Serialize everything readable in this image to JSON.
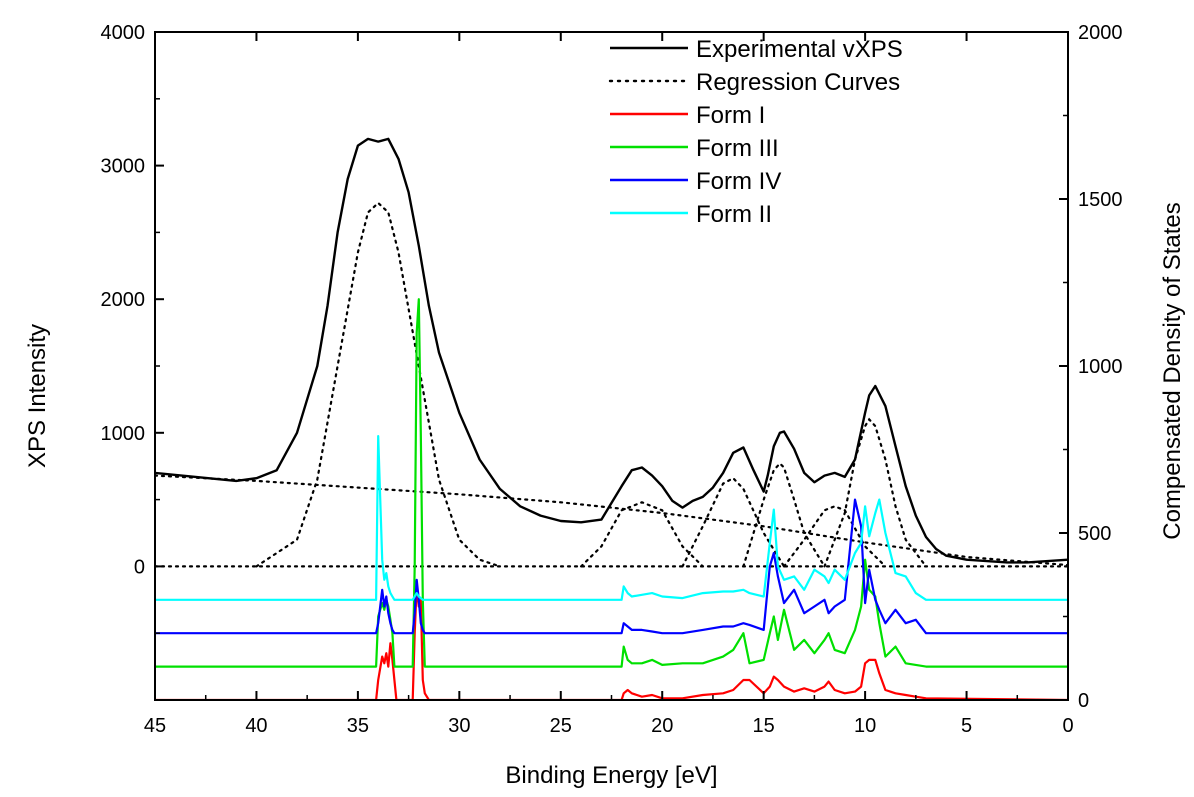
{
  "chart_data": {
    "type": "line",
    "xlabel": "Binding Energy [eV]",
    "ylabel_left": "XPS Intensity",
    "ylabel_right": "Compensated Density of States",
    "xlim": [
      45,
      0
    ],
    "ylim_left": [
      -1000,
      4000
    ],
    "ylim_right": [
      0,
      2000
    ],
    "x_ticks": [
      45,
      40,
      35,
      30,
      25,
      20,
      15,
      10,
      5,
      0
    ],
    "y_ticks_left": [
      0,
      1000,
      2000,
      3000,
      4000
    ],
    "y_ticks_right": [
      0,
      500,
      1000,
      1500,
      2000
    ],
    "grid": false,
    "legend_position": "top-right",
    "colors": {
      "experimental": "#000000",
      "regression": "#000000",
      "form_1": "#ff0000",
      "form_3": "#00e000",
      "form_4": "#0000ff",
      "form_2": "#00ffff"
    },
    "series": [
      {
        "name": "Experimental vXPS",
        "axis": "left",
        "style": "solid",
        "x": [
          45,
          43,
          41,
          40,
          39,
          38,
          37,
          36.5,
          36,
          35.5,
          35,
          34.5,
          34,
          33.5,
          33,
          32.5,
          32,
          31.5,
          31,
          30,
          29,
          28,
          27,
          26,
          25,
          24,
          23,
          22,
          21.5,
          21,
          20.5,
          20,
          19.5,
          19,
          18.5,
          18,
          17.5,
          17,
          16.5,
          16,
          15.5,
          15,
          14.8,
          14.5,
          14.2,
          14,
          13.5,
          13,
          12.5,
          12,
          11.5,
          11,
          10.5,
          10,
          9.8,
          9.5,
          9,
          8.5,
          8,
          7.5,
          7,
          6.5,
          6,
          5,
          4,
          3,
          2,
          1,
          0
        ],
        "y": [
          700,
          670,
          640,
          660,
          720,
          1000,
          1500,
          1950,
          2500,
          2900,
          3150,
          3200,
          3180,
          3200,
          3050,
          2800,
          2400,
          1950,
          1600,
          1150,
          800,
          580,
          450,
          380,
          340,
          330,
          350,
          600,
          720,
          740,
          680,
          600,
          490,
          440,
          490,
          520,
          590,
          700,
          850,
          890,
          720,
          560,
          680,
          900,
          1000,
          1010,
          880,
          700,
          630,
          680,
          700,
          670,
          800,
          1150,
          1280,
          1350,
          1200,
          900,
          600,
          380,
          220,
          130,
          80,
          50,
          40,
          30,
          30,
          40,
          50
        ]
      },
      {
        "name": "Regression Curves",
        "axis": "left",
        "style": "dotted",
        "components": [
          {
            "x": [
              45,
              40,
              35,
              30,
              25,
              20,
              15,
              10,
              5,
              0
            ],
            "y": [
              680,
              640,
              590,
              540,
              480,
              400,
              300,
              180,
              70,
              10
            ]
          },
          {
            "x": [
              40,
              38,
              37,
              36,
              35,
              34.5,
              34,
              33.5,
              33,
              32,
              31,
              30,
              29,
              28
            ],
            "y": [
              0,
              200,
              650,
              1500,
              2350,
              2650,
              2720,
              2650,
              2350,
              1500,
              650,
              200,
              50,
              0
            ]
          },
          {
            "x": [
              24,
              23,
              22,
              21,
              20,
              19,
              18
            ],
            "y": [
              0,
              150,
              420,
              480,
              420,
              150,
              0
            ]
          },
          {
            "x": [
              19,
              18,
              17,
              16.5,
              16,
              15,
              14
            ],
            "y": [
              0,
              300,
              620,
              660,
              580,
              250,
              0
            ]
          },
          {
            "x": [
              16,
              15,
              14.5,
              14.2,
              14,
              13.5,
              13,
              12
            ],
            "y": [
              0,
              500,
              720,
              770,
              740,
              500,
              250,
              0
            ]
          },
          {
            "x": [
              14,
              13,
              12,
              11.5,
              11,
              10,
              9
            ],
            "y": [
              0,
              200,
              420,
              450,
              420,
              150,
              0
            ]
          },
          {
            "x": [
              12,
              11,
              10.5,
              10,
              9.8,
              9.5,
              9,
              8.5,
              8,
              7
            ],
            "y": [
              0,
              400,
              800,
              1050,
              1100,
              1050,
              800,
              450,
              200,
              0
            ]
          }
        ]
      },
      {
        "name": "Form I",
        "axis": "right",
        "style": "solid",
        "baseline": 0,
        "x": [
          45,
          34.1,
          34,
          33.8,
          33.7,
          33.6,
          33.5,
          33.4,
          33.3,
          33.2,
          33.1,
          32.5,
          32.3,
          32.2,
          32.1,
          32,
          31.9,
          31.8,
          31.7,
          31.5,
          22,
          21.9,
          21.7,
          21.5,
          21,
          20.5,
          20,
          19,
          18,
          17,
          16.5,
          16,
          15.7,
          15,
          14.7,
          14.5,
          14.3,
          14,
          13.5,
          13,
          12.5,
          12,
          11.8,
          11.5,
          11,
          10.5,
          10.2,
          10,
          9.8,
          9.5,
          9.3,
          9,
          8.5,
          8,
          7.5,
          7,
          0
        ],
        "y": [
          0,
          0,
          60,
          130,
          110,
          140,
          100,
          170,
          120,
          60,
          0,
          0,
          0,
          200,
          340,
          280,
          300,
          60,
          20,
          0,
          0,
          20,
          30,
          20,
          10,
          15,
          5,
          5,
          15,
          20,
          30,
          60,
          60,
          20,
          40,
          70,
          60,
          40,
          25,
          35,
          25,
          40,
          55,
          30,
          20,
          25,
          40,
          110,
          120,
          120,
          80,
          30,
          20,
          15,
          10,
          5,
          0
        ]
      },
      {
        "name": "Form III",
        "axis": "right",
        "style": "solid",
        "baseline": 100,
        "x": [
          45,
          34.1,
          34,
          33.8,
          33.7,
          33.6,
          33.5,
          33.4,
          33.3,
          33.2,
          33.1,
          32.5,
          32.3,
          32.2,
          32.1,
          32,
          31.9,
          31.8,
          31.7,
          31.5,
          22,
          21.9,
          21.7,
          21.5,
          21,
          20.5,
          20,
          19,
          18,
          17,
          16.5,
          16,
          15.7,
          15,
          14.7,
          14.5,
          14.3,
          14,
          13.5,
          13,
          12.5,
          12,
          11.8,
          11.5,
          11,
          10.5,
          10.2,
          10,
          9.8,
          9.5,
          9.3,
          9,
          8.5,
          8,
          7.5,
          7,
          0
        ],
        "y": [
          100,
          100,
          250,
          290,
          270,
          300,
          280,
          240,
          200,
          100,
          100,
          100,
          100,
          400,
          1100,
          1200,
          800,
          300,
          100,
          100,
          100,
          160,
          120,
          110,
          110,
          120,
          105,
          110,
          110,
          130,
          150,
          200,
          110,
          120,
          200,
          250,
          180,
          270,
          150,
          180,
          140,
          180,
          200,
          150,
          140,
          210,
          280,
          420,
          330,
          310,
          230,
          130,
          160,
          110,
          105,
          100,
          100
        ]
      },
      {
        "name": "Form IV",
        "axis": "right",
        "style": "solid",
        "baseline": 200,
        "x": [
          45,
          34.1,
          34,
          33.8,
          33.7,
          33.6,
          33.5,
          33.4,
          33.3,
          33.2,
          33.1,
          32.5,
          32.3,
          32.2,
          32.1,
          32,
          31.9,
          31.8,
          31.7,
          31.5,
          22,
          21.9,
          21.7,
          21.5,
          21,
          20.5,
          20,
          19,
          18,
          17,
          16.5,
          16,
          15.7,
          15,
          14.7,
          14.5,
          14.3,
          14,
          13.5,
          13,
          12.5,
          12,
          11.8,
          11.5,
          11,
          10.5,
          10.2,
          10,
          9.8,
          9.5,
          9.3,
          9,
          8.5,
          8,
          7.5,
          7,
          0
        ],
        "y": [
          200,
          200,
          230,
          330,
          280,
          310,
          260,
          230,
          210,
          200,
          200,
          200,
          200,
          260,
          360,
          300,
          230,
          210,
          200,
          200,
          200,
          230,
          220,
          210,
          210,
          205,
          200,
          200,
          210,
          220,
          220,
          230,
          225,
          210,
          400,
          440,
          370,
          290,
          330,
          260,
          280,
          300,
          260,
          280,
          300,
          600,
          520,
          290,
          390,
          300,
          270,
          230,
          270,
          230,
          240,
          200,
          200
        ]
      },
      {
        "name": "Form II",
        "axis": "right",
        "style": "solid",
        "baseline": 300,
        "x": [
          45,
          34.1,
          34,
          33.8,
          33.7,
          33.6,
          33.5,
          33.4,
          33.3,
          33.2,
          33.1,
          32.5,
          32.3,
          32.2,
          32.1,
          32,
          31.9,
          31.8,
          31.7,
          31.5,
          22,
          21.9,
          21.7,
          21.5,
          21,
          20.5,
          20,
          19,
          18,
          17,
          16.5,
          16,
          15.7,
          15,
          14.7,
          14.5,
          14.3,
          14,
          13.5,
          13,
          12.5,
          12,
          11.8,
          11.5,
          11,
          10.5,
          10.2,
          10,
          9.8,
          9.5,
          9.3,
          9,
          8.5,
          8,
          7.5,
          7,
          0
        ],
        "y": [
          300,
          300,
          790,
          420,
          360,
          380,
          340,
          320,
          310,
          300,
          300,
          300,
          300,
          310,
          320,
          310,
          305,
          300,
          300,
          300,
          300,
          340,
          320,
          310,
          315,
          320,
          310,
          305,
          320,
          325,
          325,
          330,
          320,
          310,
          470,
          570,
          400,
          360,
          370,
          330,
          390,
          370,
          350,
          390,
          360,
          440,
          470,
          580,
          490,
          560,
          600,
          500,
          380,
          370,
          320,
          300,
          300
        ]
      }
    ]
  }
}
